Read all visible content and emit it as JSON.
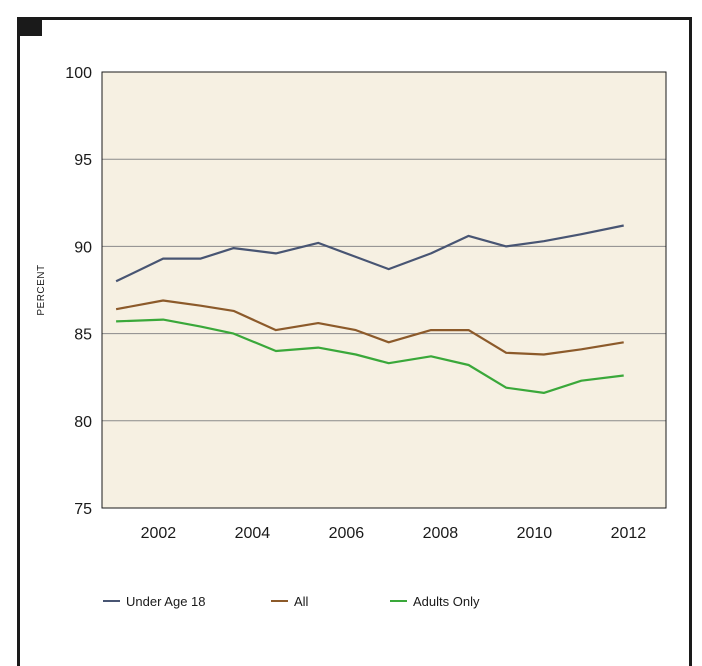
{
  "chart_data": {
    "type": "line",
    "title": "",
    "xlabel": "",
    "ylabel": "PERCENT",
    "xlim": [
      2000.8,
      2012.8
    ],
    "ylim": [
      75,
      100
    ],
    "y_ticks": [
      75,
      80,
      85,
      90,
      95,
      100
    ],
    "x_ticks": [
      2002,
      2004,
      2006,
      2008,
      2010,
      2012
    ],
    "grid": true,
    "background": "#f6f0e2",
    "legend_position": "bottom",
    "x": [
      2001.1,
      2002.1,
      2002.9,
      2003.6,
      2004.5,
      2005.4,
      2006.2,
      2006.9,
      2007.8,
      2008.6,
      2009.4,
      2010.2,
      2011.0,
      2011.9
    ],
    "series": [
      {
        "name": "Under Age 18",
        "color": "#485573",
        "values": [
          88.0,
          89.3,
          89.3,
          89.9,
          89.6,
          90.2,
          89.4,
          88.7,
          89.6,
          90.6,
          90.0,
          90.3,
          90.7,
          91.2
        ]
      },
      {
        "name": "All",
        "color": "#8c5a2a",
        "values": [
          86.4,
          86.9,
          86.6,
          86.3,
          85.2,
          85.6,
          85.2,
          84.5,
          85.2,
          85.2,
          83.9,
          83.8,
          84.1,
          84.5
        ]
      },
      {
        "name": "Adults Only",
        "color": "#3aa83a",
        "values": [
          85.7,
          85.8,
          85.4,
          85.0,
          84.0,
          84.2,
          83.8,
          83.3,
          83.7,
          83.2,
          81.9,
          81.6,
          82.3,
          82.6
        ]
      }
    ]
  }
}
